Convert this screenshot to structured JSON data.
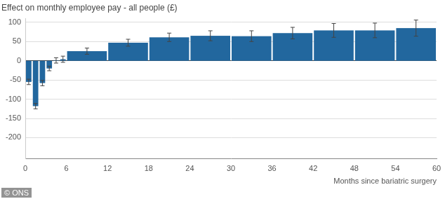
{
  "chart_data": {
    "type": "bar",
    "title": "Effect on monthly employee pay - all people (£)",
    "x_label": "Months since bariatric surgery",
    "annotation": "© ONS",
    "bins": [
      0,
      1,
      2,
      3,
      4,
      5,
      6,
      12,
      18,
      24,
      30,
      36,
      42,
      48,
      54,
      60
    ],
    "values": [
      -55,
      -118,
      -58,
      -20,
      1,
      4,
      25,
      47,
      61,
      65,
      64,
      72,
      79,
      79,
      85
    ],
    "errors": [
      7,
      7,
      7,
      6,
      7,
      8,
      8,
      9,
      11,
      13,
      14,
      15,
      18,
      19,
      21
    ],
    "color": "#22679e",
    "xlim": [
      0,
      60
    ],
    "xticks": [
      0,
      6,
      12,
      18,
      24,
      30,
      36,
      42,
      48,
      54,
      60
    ],
    "ylim": [
      -255,
      110
    ],
    "yticks": [
      -200,
      -150,
      -100,
      -50,
      0,
      50,
      100
    ],
    "grid": true
  }
}
